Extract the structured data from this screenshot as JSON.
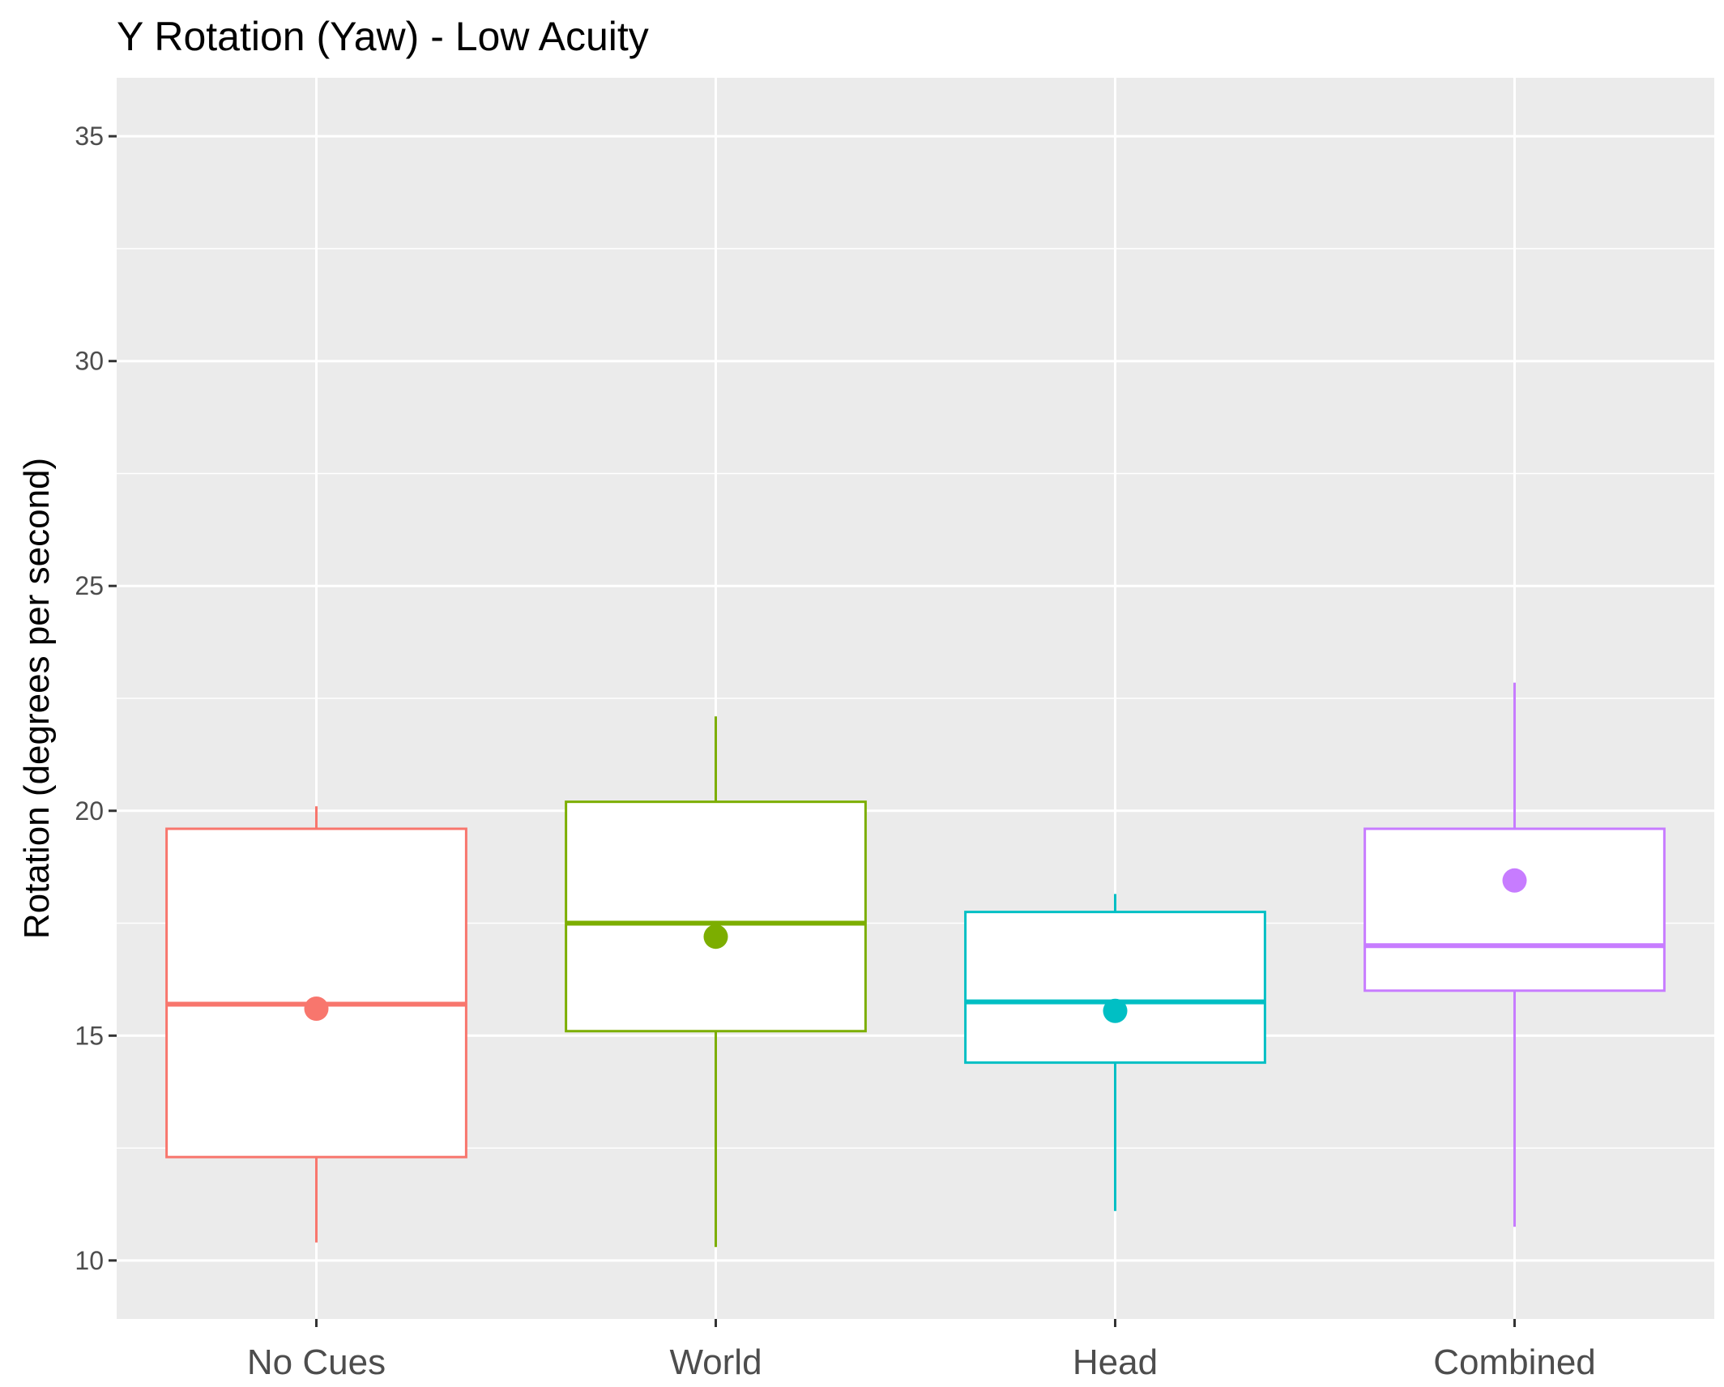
{
  "chart_data": {
    "type": "boxplot",
    "title": "Y Rotation (Yaw) - Low Acuity",
    "xlabel": "",
    "ylabel": "Rotation (degrees per second)",
    "ylim": [
      8.7,
      36.3
    ],
    "yticks": [
      10,
      15,
      20,
      25,
      30,
      35
    ],
    "ytick_labels": [
      "10",
      "15",
      "20",
      "25",
      "30",
      "35"
    ],
    "grid": true,
    "legend": "none",
    "categories": [
      "No Cues",
      "World",
      "Head",
      "Combined"
    ],
    "boxes": [
      {
        "category": "No Cues",
        "color": "#F8766D",
        "whisker_low": 10.4,
        "q1": 12.3,
        "median": 15.7,
        "q3": 19.6,
        "whisker_high": 20.1,
        "mean": 15.6
      },
      {
        "category": "World",
        "color": "#7CAE00",
        "whisker_low": 10.3,
        "q1": 15.1,
        "median": 17.5,
        "q3": 20.2,
        "whisker_high": 22.1,
        "mean": 17.2
      },
      {
        "category": "Head",
        "color": "#00BFC4",
        "whisker_low": 11.1,
        "q1": 14.4,
        "median": 15.75,
        "q3": 17.75,
        "whisker_high": 18.15,
        "mean": 15.55
      },
      {
        "category": "Combined",
        "color": "#C77CFF",
        "whisker_low": 10.75,
        "q1": 16.0,
        "median": 17.0,
        "q3": 19.6,
        "whisker_high": 22.85,
        "mean": 18.45
      }
    ],
    "colors": {
      "panel": "#EBEBEB",
      "grid": "#FFFFFF",
      "tick": "#333333"
    }
  }
}
